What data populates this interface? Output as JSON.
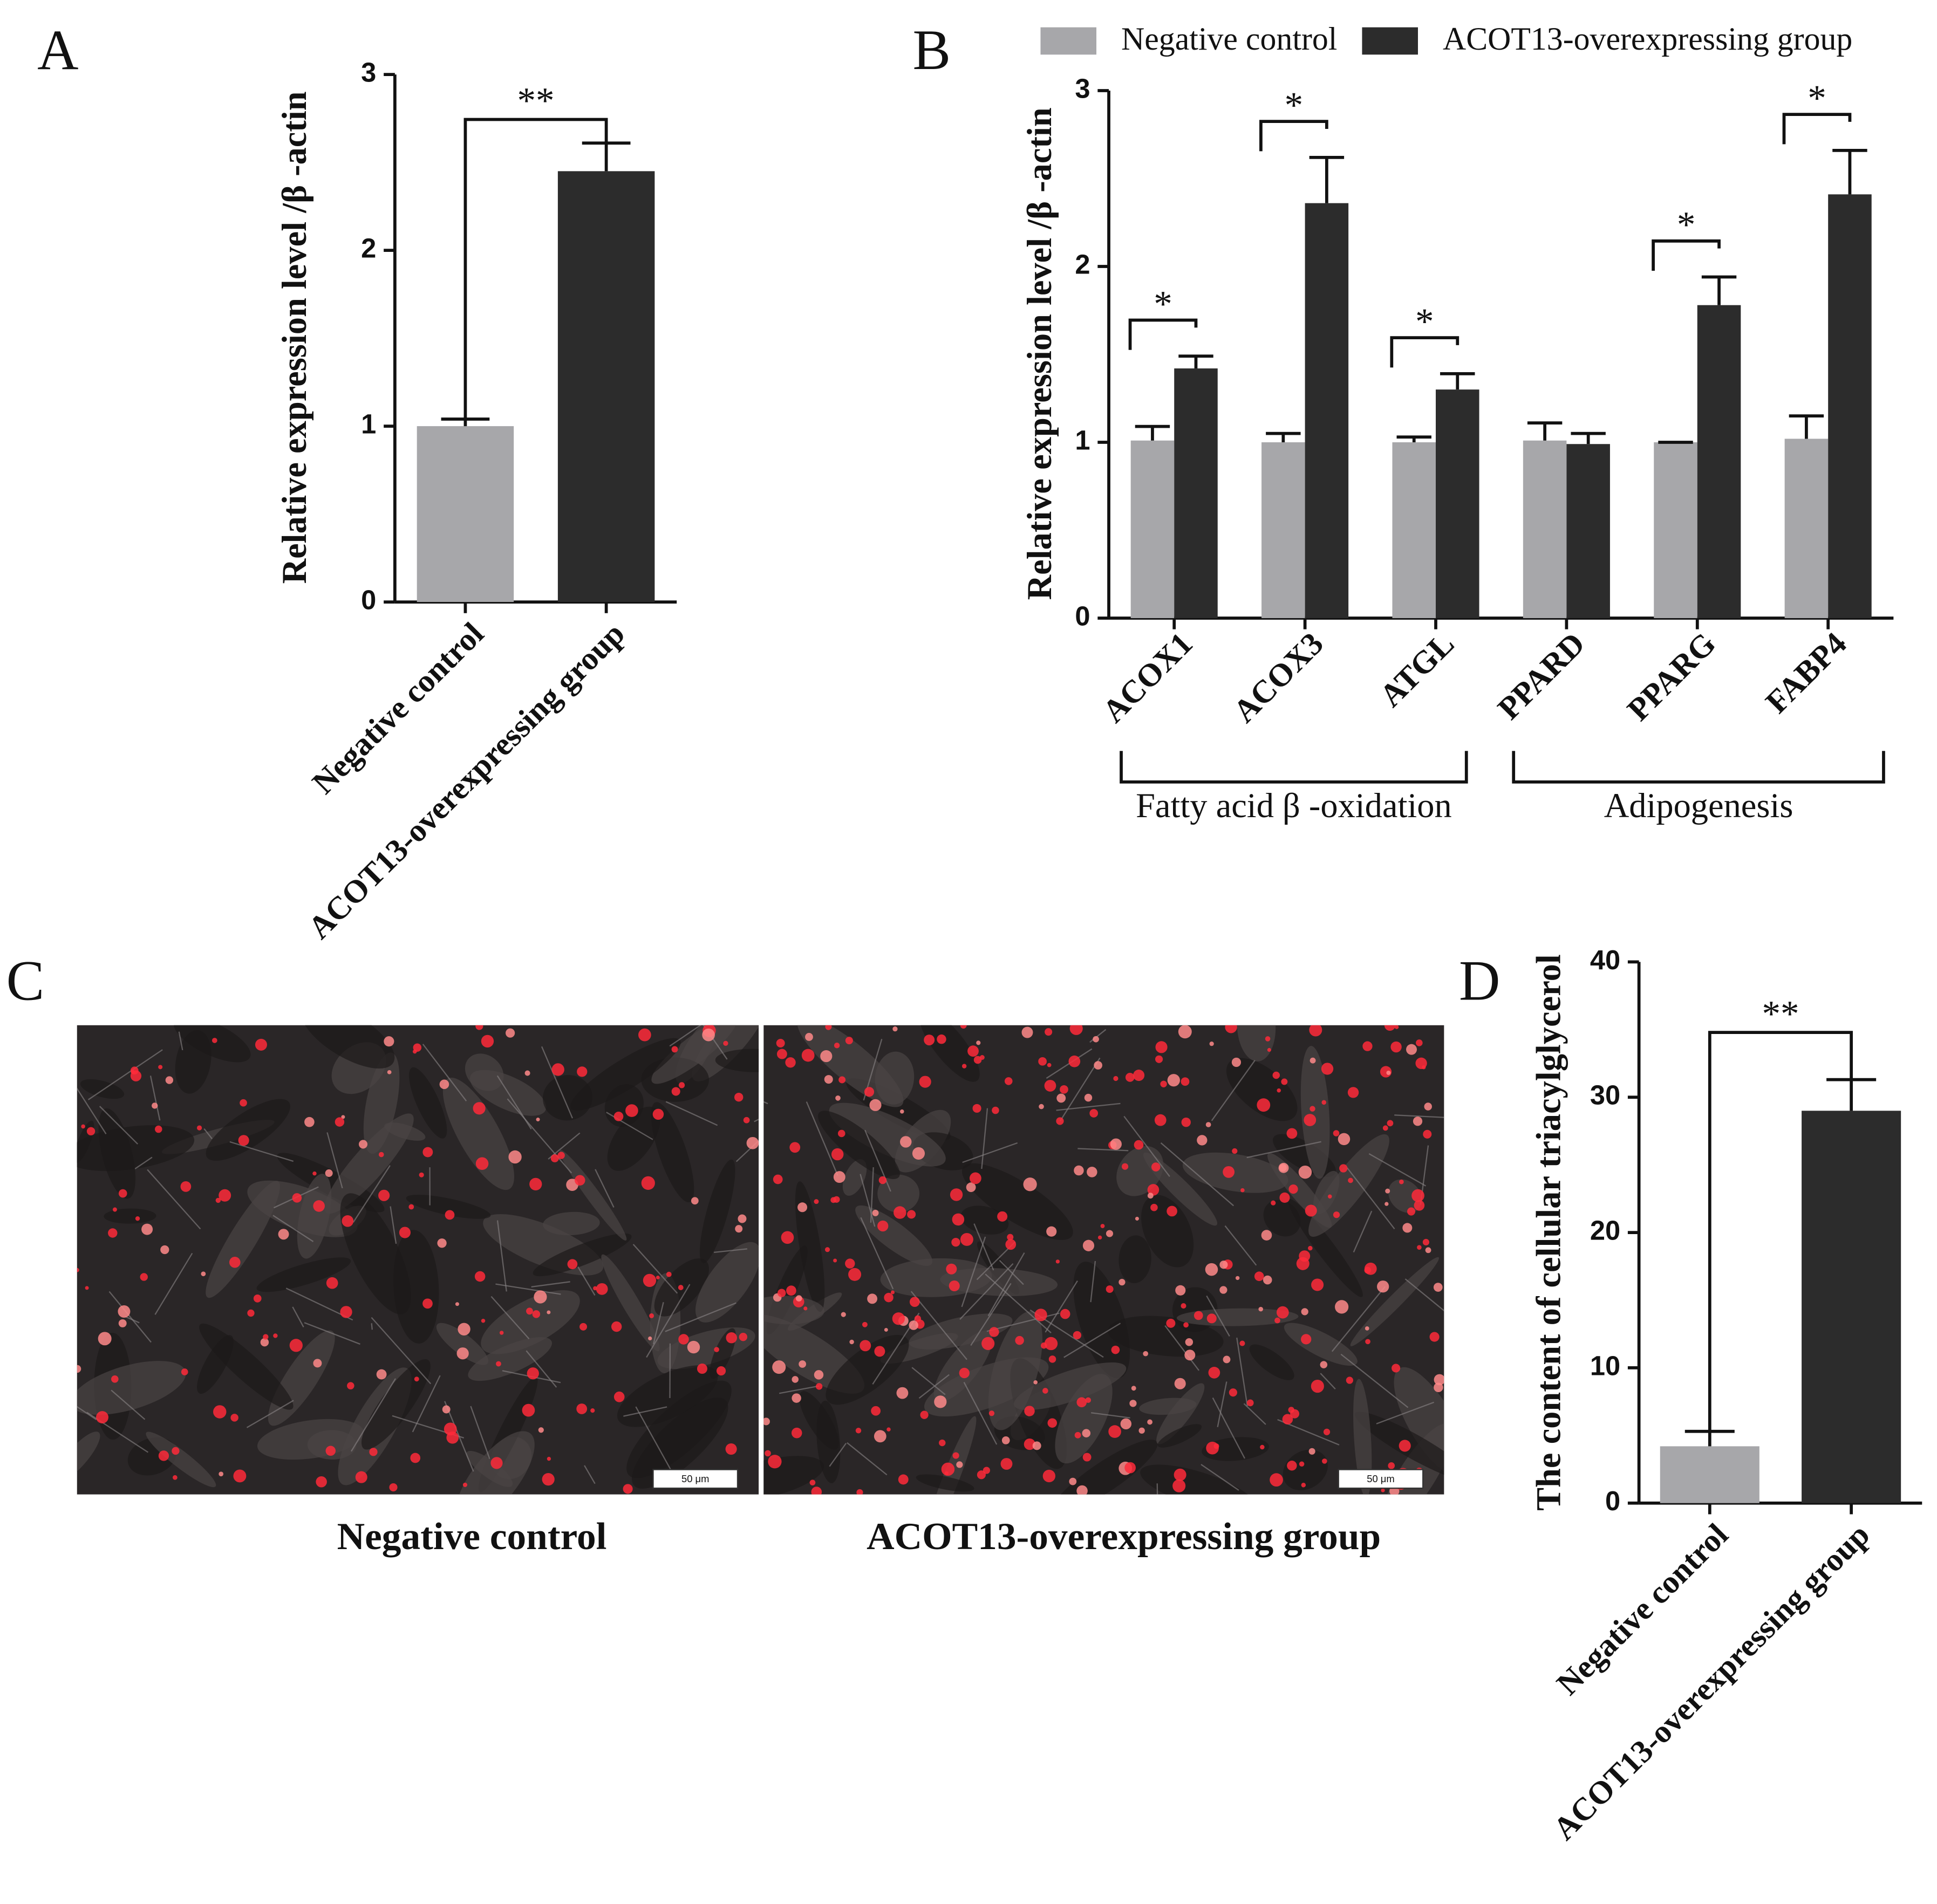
{
  "chart_data": [
    {
      "type": "bar",
      "panel_label": "A",
      "y_label": "Relative expression level /β -actin",
      "categories": [
        "Negative control",
        "ACOT13-overexpressing group"
      ],
      "values": [
        1.0,
        2.45
      ],
      "errors": [
        0.04,
        0.16
      ],
      "colors": [
        "#a7a7aa",
        "#2c2c2c"
      ],
      "significance": "**",
      "ylim": [
        0,
        3
      ],
      "yticks": [
        0,
        1,
        2,
        3
      ]
    },
    {
      "type": "grouped_bar",
      "panel_label": "B",
      "y_label": "Relative expression level /β -actin",
      "categories": [
        "ACOX1",
        "ACOX3",
        "ATGL",
        "PPARD",
        "PPARG",
        "FABP4"
      ],
      "series": [
        {
          "name": "Negative control",
          "color": "#a7a7aa",
          "values": [
            1.01,
            1.0,
            1.0,
            1.01,
            1.0,
            1.02
          ],
          "errors": [
            0.08,
            0.05,
            0.03,
            0.1,
            0.0,
            0.13
          ]
        },
        {
          "name": "ACOT13-overexpressing group",
          "color": "#2c2c2c",
          "values": [
            1.42,
            2.36,
            1.3,
            0.99,
            1.78,
            2.41
          ],
          "errors": [
            0.07,
            0.26,
            0.09,
            0.06,
            0.16,
            0.25
          ]
        }
      ],
      "significance": [
        "*",
        "*",
        "*",
        null,
        "*",
        "*"
      ],
      "group_labels": [
        "Fatty acid β -oxidation",
        "Adipogenesis"
      ],
      "legend": "top",
      "ylim": [
        0,
        3
      ],
      "yticks": [
        0,
        1,
        2,
        3
      ]
    },
    {
      "type": "bar",
      "panel_label": "D",
      "y_label": "The content of cellular triacylglycerol",
      "categories": [
        "Negative control",
        "ACOT13-overexpressing group"
      ],
      "values": [
        4.2,
        29.0
      ],
      "errors": [
        1.1,
        2.3
      ],
      "colors": [
        "#a7a7aa",
        "#2c2c2c"
      ],
      "significance": "**",
      "ylim": [
        0,
        40
      ],
      "yticks": [
        0,
        10,
        20,
        30,
        40
      ]
    }
  ],
  "image_panel": {
    "panel_label": "C",
    "captions": [
      "Negative control",
      "ACOT13-overexpressing group"
    ],
    "scale_bar": "50 μm"
  }
}
